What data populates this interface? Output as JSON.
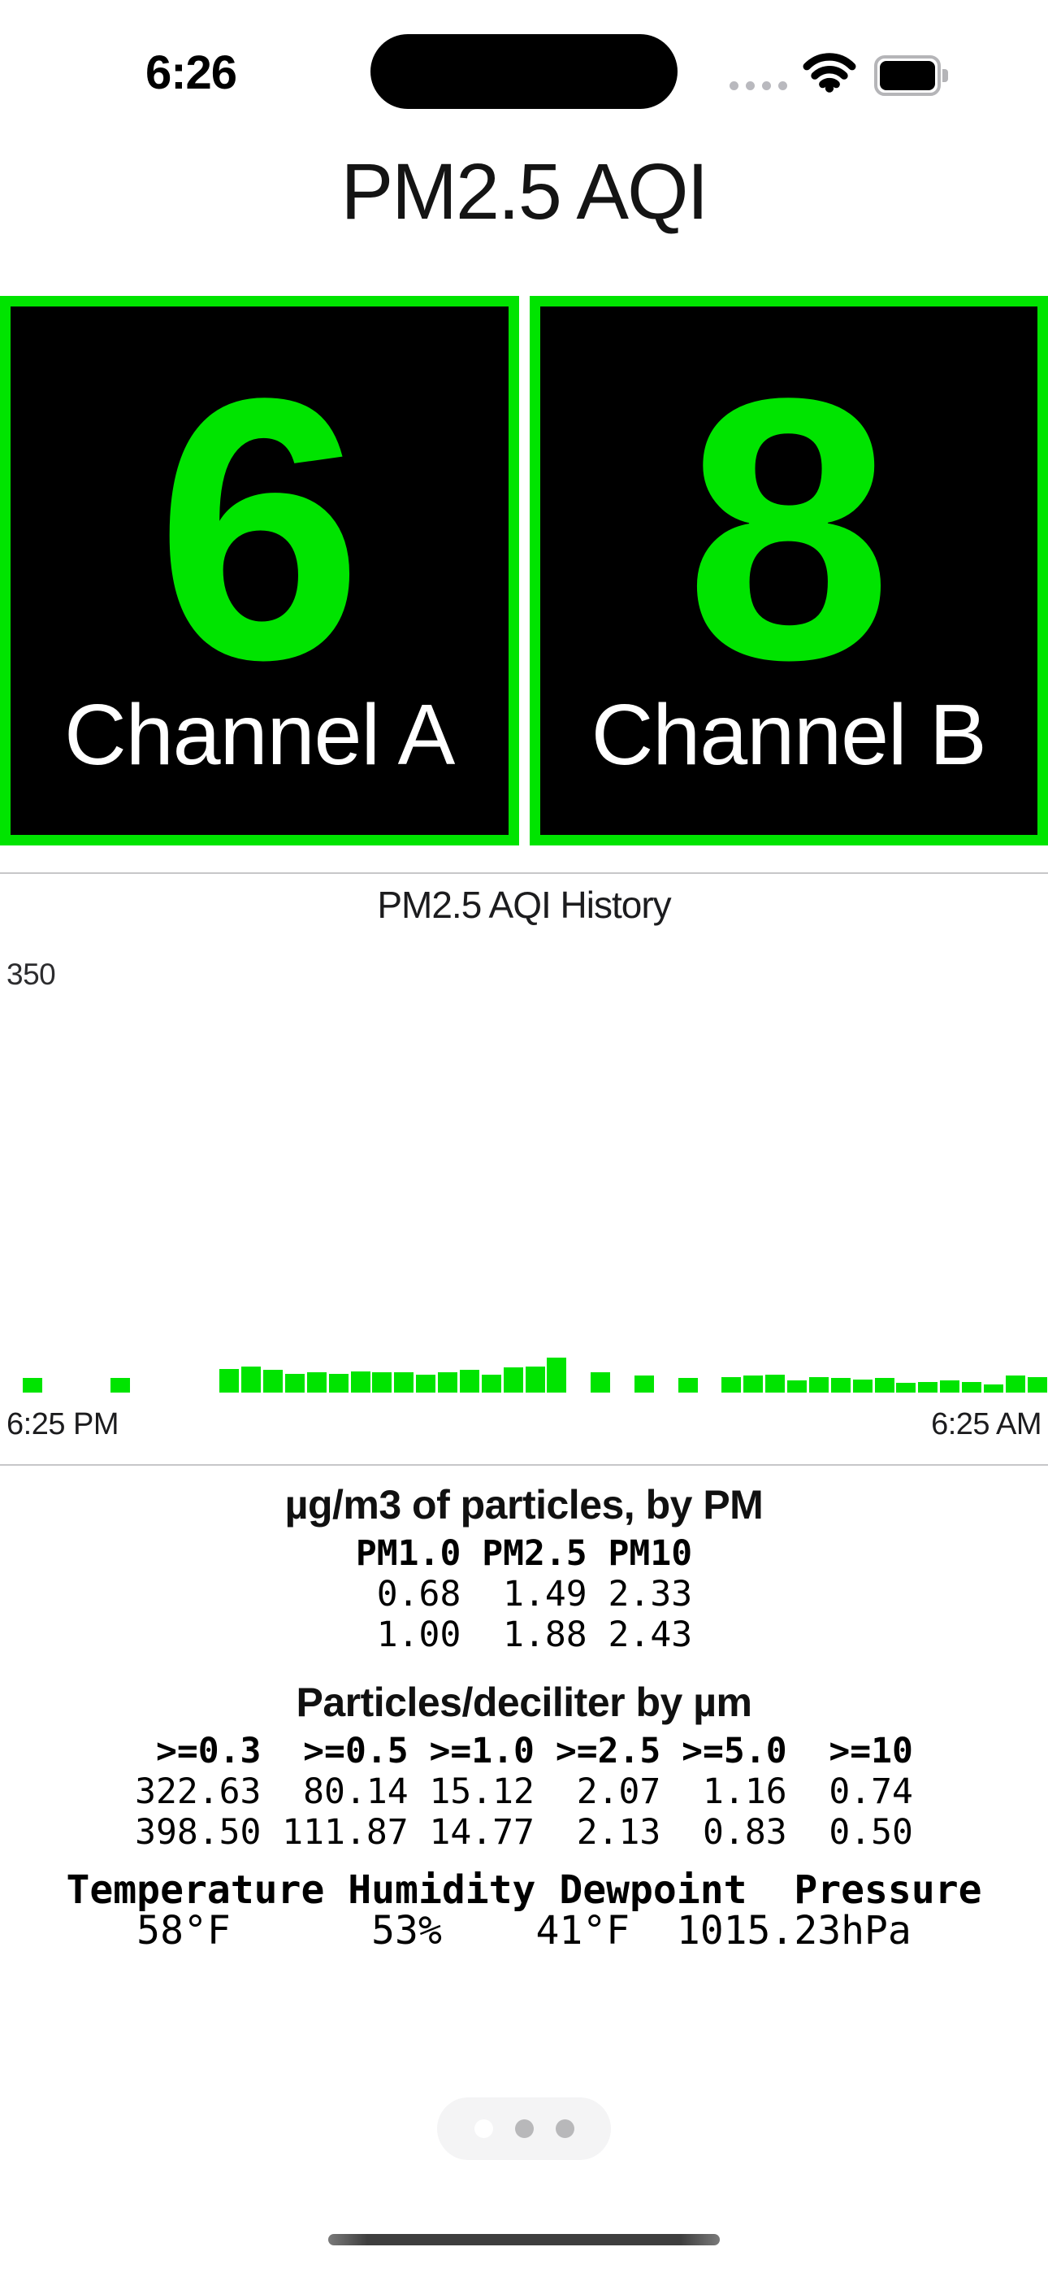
{
  "colors": {
    "aqi_green": "#00e400",
    "tile_background": "#000000",
    "page_pill_background": "#f4f4f5",
    "inactive_dot": "#b8b8ba",
    "active_dot": "#ffffff"
  },
  "status_bar": {
    "time": "6:26"
  },
  "header": {
    "title": "PM2.5 AQI"
  },
  "channels": [
    {
      "value": "6",
      "label": "Channel A"
    },
    {
      "value": "8",
      "label": "Channel B"
    }
  ],
  "chart_data": {
    "type": "bar",
    "title": "PM2.5 AQI History",
    "ylabel": "",
    "xlabel": "",
    "y_max_label": "350",
    "ylim": [
      0,
      350
    ],
    "x_start_label": "6:25 PM",
    "x_end_label": "6:25 AM",
    "slot_count": 48,
    "bar_color": "#00e400",
    "grid": false,
    "legend": false,
    "values": [
      0,
      12,
      0,
      0,
      0,
      12,
      0,
      0,
      0,
      0,
      20,
      22,
      19,
      16,
      17,
      16,
      18,
      17,
      17,
      15,
      17,
      19,
      15,
      21,
      22,
      29,
      0,
      17,
      0,
      14,
      0,
      12,
      0,
      13,
      14,
      15,
      10,
      13,
      12,
      11,
      12,
      8,
      9,
      10,
      9,
      7,
      14,
      13
    ]
  },
  "tables": {
    "mass": {
      "title": "µg/m3 of particles, by PM",
      "header": "PM1.0 PM2.5 PM10",
      "rows": [
        " 0.68  1.49 2.33",
        " 1.00  1.88 2.43"
      ]
    },
    "counts": {
      "title": "Particles/deciliter by µm",
      "header": " >=0.3  >=0.5 >=1.0 >=2.5 >=5.0  >=10",
      "rows": [
        "322.63  80.14 15.12  2.07  1.16  0.74",
        "398.50 111.87 14.77  2.13  0.83  0.50"
      ]
    },
    "weather": {
      "header": "Temperature Humidity Dewpoint  Pressure",
      "values": "   58°F      53%    41°F  1015.23hPa"
    }
  },
  "page_indicator": {
    "count": 3,
    "active_index": 0
  }
}
